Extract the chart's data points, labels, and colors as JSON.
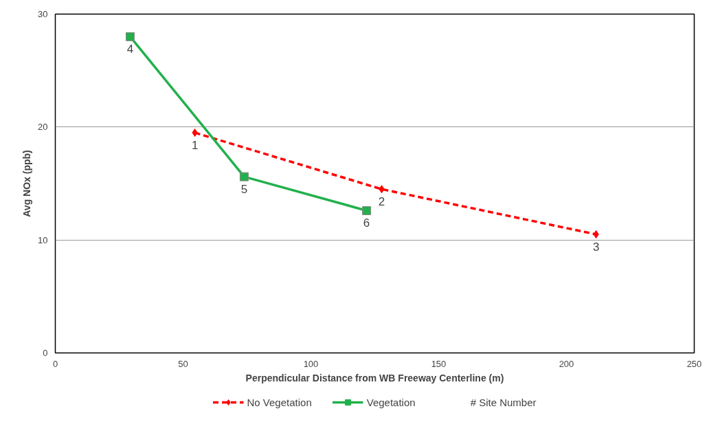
{
  "chart_data": {
    "type": "line",
    "xlabel": "Perpendicular Distance from WB Freeway Centerline (m)",
    "ylabel": "Avg NOx (ppb)",
    "xlim": [
      0,
      250
    ],
    "xticks": [
      0,
      50,
      100,
      150,
      200,
      250
    ],
    "ylim": [
      0,
      30
    ],
    "yticks": [
      0,
      10,
      20,
      30
    ],
    "grid": "y",
    "legend": "bottom",
    "series": [
      {
        "name": "No Vegetation",
        "color": "#ff0000",
        "x": [
          54.6,
          127.7,
          211.6
        ],
        "values": [
          19.5,
          14.5,
          10.5
        ],
        "marker": "diamond",
        "line_style": "dashed"
      },
      {
        "name": "Vegetation",
        "color": "#22b04c",
        "x": [
          29.3,
          73.9,
          121.8
        ],
        "values": [
          28.0,
          15.6,
          12.6
        ],
        "marker": "square",
        "line_style": "solid"
      }
    ],
    "annotations": [
      {
        "text": "1",
        "x": 54.6,
        "y": 19.5
      },
      {
        "text": "2",
        "x": 127.7,
        "y": 14.5
      },
      {
        "text": "3",
        "x": 211.6,
        "y": 10.5
      },
      {
        "text": "4",
        "x": 29.3,
        "y": 28.0
      },
      {
        "text": "5",
        "x": 73.9,
        "y": 15.6
      },
      {
        "text": "6",
        "x": 121.8,
        "y": 12.6
      },
      "# Site Number"
    ]
  }
}
